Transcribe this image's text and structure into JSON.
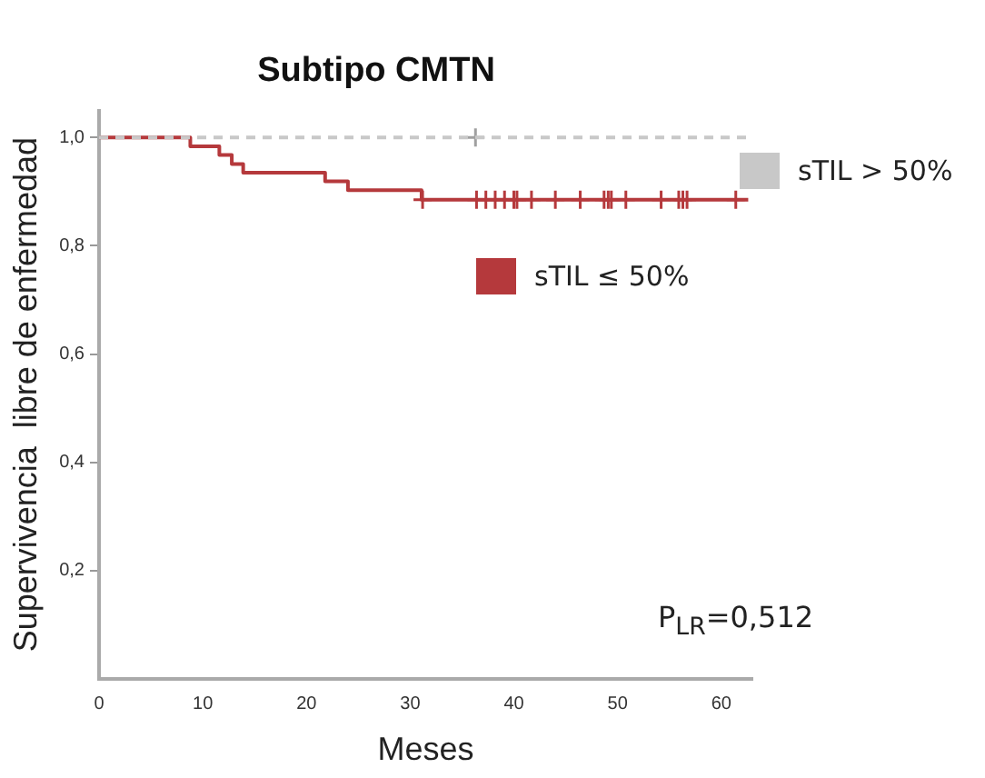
{
  "chart_data": {
    "type": "step",
    "title": "Subtipo CMTN",
    "xlabel": "Meses",
    "ylabel": "Supervivencia  libre de enfermedad",
    "xlim": [
      0,
      63
    ],
    "xticks": [
      0,
      10,
      20,
      30,
      40,
      50,
      60
    ],
    "ylim": [
      0,
      1.05
    ],
    "yticks": [
      {
        "value": 0.2,
        "label": "0,2"
      },
      {
        "value": 0.4,
        "label": "0,4"
      },
      {
        "value": 0.6,
        "label": "0,6"
      },
      {
        "value": 0.8,
        "label": "0,8"
      },
      {
        "value": 1,
        "label": "1,0"
      }
    ],
    "grid": false,
    "legend": "right",
    "marker": "none",
    "series": [
      {
        "name": "sTIL > 50%",
        "color": "#c8c8c8",
        "line_style": "dashed",
        "x": [
          0,
          63
        ],
        "values": [
          1,
          1
        ]
      },
      {
        "name": "sTIL ≤ 50%",
        "color": "#b5393c",
        "line_style": "solid",
        "x": [
          0,
          8.8,
          11.6,
          12.8,
          13.9,
          21.8,
          24.0,
          31.1,
          62.6
        ],
        "values": [
          1,
          0.984,
          0.968,
          0.951,
          0.935,
          0.919,
          0.903,
          0.885,
          0.885
        ]
      },
      {
        "type": "scatter",
        "color": "#a0a0a0",
        "marker": "cross",
        "x": [
          36.3
        ],
        "values": [
          1
        ]
      },
      {
        "type": "scatter",
        "color": "#b5393c",
        "marker": "cross",
        "x": [
          31.2,
          36.4,
          37.3,
          38.2,
          39.1,
          40.0,
          40.3,
          41.7,
          44.0,
          46.4,
          48.7,
          49.1,
          49.4,
          50.8,
          54.2,
          55.9,
          56.3,
          56.7,
          61.4
        ],
        "values": [
          0.885,
          0.885,
          0.885,
          0.885,
          0.885,
          0.885,
          0.885,
          0.885,
          0.885,
          0.885,
          0.885,
          0.885,
          0.885,
          0.885,
          0.885,
          0.885,
          0.885,
          0.885,
          0.885
        ]
      }
    ],
    "annotations": [
      "P$_{LR}$=0,512"
    ]
  }
}
